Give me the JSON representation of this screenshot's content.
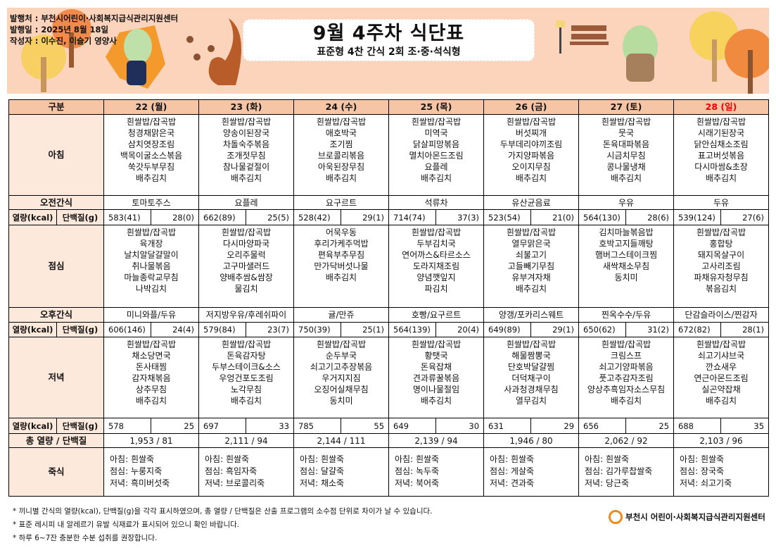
{
  "header": {
    "publisher": "발행처 : 부천시어린이·사회복지급식관리지원센터",
    "date": "발행일 : 2025년 8월 18일",
    "author": "작성자 : 이수진, 이슬기 영양사",
    "title": "9월 4주차 식단표",
    "subtitle": "표준형 4찬 간식 2회 조·중·석식형"
  },
  "colors": {
    "banner": "#fcd3bb",
    "header_bg": "#f6c5a5",
    "label_bg": "#fde8dc",
    "sunday": "#e00000",
    "logo": "#f08a1c"
  },
  "labels": {
    "category": "구분",
    "breakfast": "아침",
    "am_snack": "오전간식",
    "kcal": "열량(kcal)",
    "protein": "단백질(g)",
    "lunch": "점심",
    "pm_snack": "오후간식",
    "dinner": "저녁",
    "total": "총 열량 / 단백질",
    "porridge": "죽식"
  },
  "days": [
    {
      "day": "22 (월)",
      "breakfast": [
        "흰쌀밥/잡곡밥",
        "청경채맑은국",
        "삼치엿장조림",
        "백목이굴소스볶음",
        "쑥갓두부무침",
        "배추김치"
      ],
      "am_snack": "토마토주스",
      "am_kcal": "583(41)",
      "am_protein": "28(0)",
      "lunch": [
        "흰쌀밥/잡곡밥",
        "육개장",
        "날치알달걀말이",
        "취나물볶음",
        "마늘종락교무침",
        "나박김치"
      ],
      "pm_snack": "미니와플/두유",
      "pm_kcal": "606(146)",
      "pm_protein": "24(4)",
      "dinner": [
        "흰쌀밥/잡곡밥",
        "채소당면국",
        "돈사태찜",
        "감자채볶음",
        "상추무침",
        "배추김치"
      ],
      "dn_kcal": "578",
      "dn_protein": "25",
      "total": "1,953  /  81",
      "porridge": [
        "아침: 흰쌀죽",
        "점심: 누룽지죽",
        "저녁: 흑미버섯죽"
      ]
    },
    {
      "day": "23 (화)",
      "breakfast": [
        "흰쌀밥/잡곡밥",
        "양송이된장국",
        "차돌숙주볶음",
        "조개젓무침",
        "참나물겉절이",
        "배추김치"
      ],
      "am_snack": "요플레",
      "am_kcal": "662(89)",
      "am_protein": "25(5)",
      "lunch": [
        "흰쌀밥/잡곡밥",
        "다시마양파국",
        "오리주물럭",
        "고구마샐러드",
        "양배추쌈&쌈장",
        "물김치"
      ],
      "pm_snack": "저지방우유/후레쉬파이",
      "pm_kcal": "579(84)",
      "pm_protein": "23(7)",
      "dinner": [
        "흰쌀밥/잡곡밥",
        "돈육감자탕",
        "두부스테이크&소스",
        "우엉건포도조림",
        "노각무침",
        "배추김치"
      ],
      "dn_kcal": "697",
      "dn_protein": "33",
      "total": "2,111  /  94",
      "porridge": [
        "아침: 흰쌀죽",
        "점심: 흑임자죽",
        "저녁: 브로콜리죽"
      ]
    },
    {
      "day": "24 (수)",
      "breakfast": [
        "흰쌀밥/잡곡밥",
        "애호박국",
        "조기찜",
        "브로콜리볶음",
        "아욱된장무침",
        "배추김치"
      ],
      "am_snack": "요구르트",
      "am_kcal": "528(42)",
      "am_protein": "29(1)",
      "lunch": [
        "어묵우동",
        "후리가케주먹밥",
        "편육부추무침",
        "만가닥버섯나물",
        "배추김치"
      ],
      "pm_snack": "귤/만쥬",
      "pm_kcal": "750(39)",
      "pm_protein": "25(1)",
      "dinner": [
        "흰쌀밥/잡곡밥",
        "순두부국",
        "쇠고기고추장볶음",
        "우거지지짐",
        "오징어실채무침",
        "동치미"
      ],
      "dn_kcal": "785",
      "dn_protein": "55",
      "total": "2,144  /  111",
      "porridge": [
        "아침: 흰쌀죽",
        "점심: 달걀죽",
        "저녁: 채소죽"
      ]
    },
    {
      "day": "25 (목)",
      "breakfast": [
        "흰쌀밥/잡곡밥",
        "미역국",
        "닭살피망볶음",
        "멸치아몬드조림",
        "요플레",
        "배추김치"
      ],
      "am_snack": "석류차",
      "am_kcal": "714(74)",
      "am_protein": "37(3)",
      "lunch": [
        "흰쌀밥/잡곡밥",
        "두부김치국",
        "연어까스&타르소스",
        "도라지채조림",
        "양념깻잎지",
        "파김치"
      ],
      "pm_snack": "호빵/요구르트",
      "pm_kcal": "564(139)",
      "pm_protein": "20(4)",
      "dinner": [
        "흰쌀밥/잡곡밥",
        "황탯국",
        "돈육잡채",
        "견과류꿀볶음",
        "명이나물절임",
        "배추김치"
      ],
      "dn_kcal": "649",
      "dn_protein": "30",
      "total": "2,139  /  94",
      "porridge": [
        "아침: 흰쌀죽",
        "점심: 녹두죽",
        "저녁: 북어죽"
      ]
    },
    {
      "day": "26 (금)",
      "breakfast": [
        "흰쌀밥/잡곡밥",
        "버섯찌개",
        "두부데리야끼조림",
        "가지양파볶음",
        "오이지무침",
        "배추김치"
      ],
      "am_snack": "유산균음료",
      "am_kcal": "523(54)",
      "am_protein": "21(0)",
      "lunch": [
        "흰쌀밥/잡곡밥",
        "열무맑은국",
        "쇠불고기",
        "고들빼기무침",
        "유부겨자채",
        "배추김치"
      ],
      "pm_snack": "양갱/포카리스웨트",
      "pm_kcal": "649(89)",
      "pm_protein": "29(1)",
      "dinner": [
        "흰쌀밥/잡곡밥",
        "해물짬뽕국",
        "단호박달걀찜",
        "더덕채구이",
        "사과청경채무침",
        "열무김치"
      ],
      "dn_kcal": "631",
      "dn_protein": "29",
      "total": "1,946  /  80",
      "porridge": [
        "아침: 흰쌀죽",
        "점심: 게살죽",
        "저녁: 견과죽"
      ]
    },
    {
      "day": "27 (토)",
      "breakfast": [
        "흰쌀밥/잡곡밥",
        "뭇국",
        "돈육대파볶음",
        "시금치무침",
        "콩나물냉채",
        "배추김치"
      ],
      "am_snack": "우유",
      "am_kcal": "564(130)",
      "am_protein": "28(6)",
      "lunch": [
        "김치마늘볶음밥",
        "호박고지들깨탕",
        "햄버그스테이크찜",
        "새싹채소무침",
        "동치미"
      ],
      "pm_snack": "찐옥수수/두유",
      "pm_kcal": "650(62)",
      "pm_protein": "31(2)",
      "dinner": [
        "흰쌀밥/잡곡밥",
        "크림스프",
        "쇠고기양파볶음",
        "풋고추감자조림",
        "양상추흑임자소스무침",
        "배추김치"
      ],
      "dn_kcal": "656",
      "dn_protein": "25",
      "total": "2,062  /  92",
      "porridge": [
        "아침: 흰쌀죽",
        "점심: 김가루찹쌀죽",
        "저녁: 당근죽"
      ]
    },
    {
      "day": "28 (일)",
      "breakfast": [
        "흰쌀밥/잡곡밥",
        "시래기된장국",
        "닭안심채소조림",
        "표고버섯볶음",
        "다시마쌈&초장",
        "배추김치"
      ],
      "am_snack": "두유",
      "am_kcal": "539(124)",
      "am_protein": "27(6)",
      "lunch": [
        "흰쌀밥/잡곡밥",
        "홍합탕",
        "돼지목살구이",
        "고사리조림",
        "파채유자청무침",
        "볶음김치"
      ],
      "pm_snack": "단감슬라이스/찐감자",
      "pm_kcal": "672(82)",
      "pm_protein": "28(1)",
      "dinner": [
        "흰쌀밥/잡곡밥",
        "쇠고기샤브국",
        "깐쇼새우",
        "연근아몬드조림",
        "실곤약잡채",
        "배추김치"
      ],
      "dn_kcal": "688",
      "dn_protein": "35",
      "total": "2,103  /  96",
      "porridge": [
        "아침: 흰쌀죽",
        "점심: 장국죽",
        "저녁: 쇠고기죽"
      ]
    }
  ],
  "notes": [
    "* 끼니별 간식의 열량(kcal), 단백질(g)을 각각 표시하였으며, 총 열량 / 단백질은 산출 프로그램의 소수점 단위로 차이가 날 수 있습니다.",
    "* 표준 레시피 내 알레르기 유발 식재료가 표시되어 있으니 확인 바랍니다.",
    "* 하루 6~7잔 충분한 수분 섭취를 권장합니다."
  ],
  "footer": {
    "logo_text": "부천시 어린이·사회복지급식관리지원센터"
  }
}
